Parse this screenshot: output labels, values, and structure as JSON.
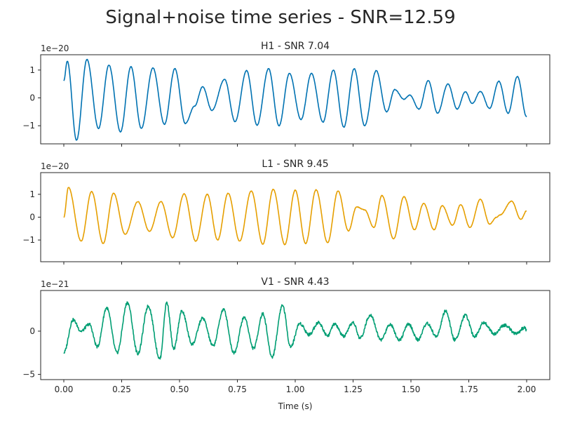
{
  "figure": {
    "suptitle": "Signal+noise time series - SNR=12.59",
    "xlabel": "Time (s)"
  },
  "chart_data": [
    {
      "type": "line",
      "title": "H1 - SNR 7.04",
      "offset_text": "1e−20",
      "color": "#0072B2",
      "xlim": [
        -0.1,
        2.1
      ],
      "ylim": [
        -1.65,
        1.55
      ],
      "xticks": [
        0.0,
        0.25,
        0.5,
        0.75,
        1.0,
        1.25,
        1.5,
        1.75,
        2.0
      ],
      "xtick_labels": [
        "0.00",
        "0.25",
        "0.50",
        "0.75",
        "1.00",
        "1.25",
        "1.50",
        "1.75",
        "2.00"
      ],
      "yticks": [
        1,
        0,
        -1
      ],
      "ytick_labels": [
        "1",
        "0",
        "−1"
      ],
      "peaks": [
        [
          0.0,
          0.62
        ],
        [
          0.015,
          1.32
        ],
        [
          0.055,
          -1.52
        ],
        [
          0.1,
          1.38
        ],
        [
          0.15,
          -1.1
        ],
        [
          0.195,
          1.18
        ],
        [
          0.245,
          -1.22
        ],
        [
          0.29,
          1.12
        ],
        [
          0.335,
          -1.1
        ],
        [
          0.385,
          1.08
        ],
        [
          0.435,
          -0.95
        ],
        [
          0.48,
          1.05
        ],
        [
          0.525,
          -0.92
        ],
        [
          0.565,
          -0.3
        ],
        [
          0.6,
          0.4
        ],
        [
          0.64,
          -0.45
        ],
        [
          0.695,
          0.67
        ],
        [
          0.74,
          -0.85
        ],
        [
          0.79,
          0.98
        ],
        [
          0.835,
          -0.98
        ],
        [
          0.885,
          1.05
        ],
        [
          0.93,
          -1.0
        ],
        [
          0.975,
          0.88
        ],
        [
          1.025,
          -0.78
        ],
        [
          1.07,
          0.88
        ],
        [
          1.12,
          -0.87
        ],
        [
          1.165,
          1.0
        ],
        [
          1.21,
          -1.05
        ],
        [
          1.255,
          1.05
        ],
        [
          1.3,
          -1.0
        ],
        [
          1.35,
          0.98
        ],
        [
          1.395,
          -0.5
        ],
        [
          1.43,
          0.3
        ],
        [
          1.47,
          -0.05
        ],
        [
          1.495,
          0.1
        ],
        [
          1.535,
          -0.4
        ],
        [
          1.575,
          0.62
        ],
        [
          1.615,
          -0.55
        ],
        [
          1.66,
          0.5
        ],
        [
          1.7,
          -0.4
        ],
        [
          1.735,
          0.22
        ],
        [
          1.765,
          -0.2
        ],
        [
          1.8,
          0.23
        ],
        [
          1.84,
          -0.38
        ],
        [
          1.88,
          0.6
        ],
        [
          1.92,
          -0.55
        ],
        [
          1.96,
          0.77
        ],
        [
          2.0,
          -0.68
        ]
      ]
    },
    {
      "type": "line",
      "title": "L1 - SNR 9.45",
      "offset_text": "1e−20",
      "color": "#E69F00",
      "xlim": [
        -0.1,
        2.1
      ],
      "ylim": [
        -1.95,
        1.95
      ],
      "xticks": [
        0.0,
        0.25,
        0.5,
        0.75,
        1.0,
        1.25,
        1.5,
        1.75,
        2.0
      ],
      "xtick_labels": [
        "0.00",
        "0.25",
        "0.50",
        "0.75",
        "1.00",
        "1.25",
        "1.50",
        "1.75",
        "2.00"
      ],
      "yticks": [
        1,
        0,
        -1
      ],
      "ytick_labels": [
        "1",
        "0",
        "−1"
      ],
      "peaks": [
        [
          0.0,
          0.0
        ],
        [
          0.02,
          1.3
        ],
        [
          0.075,
          -1.05
        ],
        [
          0.12,
          1.12
        ],
        [
          0.17,
          -1.15
        ],
        [
          0.215,
          1.05
        ],
        [
          0.265,
          -0.75
        ],
        [
          0.32,
          0.68
        ],
        [
          0.37,
          -0.62
        ],
        [
          0.42,
          0.68
        ],
        [
          0.47,
          -0.9
        ],
        [
          0.52,
          1.02
        ],
        [
          0.57,
          -1.05
        ],
        [
          0.62,
          1.0
        ],
        [
          0.665,
          -1.0
        ],
        [
          0.71,
          1.05
        ],
        [
          0.76,
          -1.05
        ],
        [
          0.81,
          1.15
        ],
        [
          0.86,
          -1.18
        ],
        [
          0.905,
          1.22
        ],
        [
          0.955,
          -1.2
        ],
        [
          1.0,
          1.18
        ],
        [
          1.045,
          -1.15
        ],
        [
          1.09,
          1.2
        ],
        [
          1.14,
          -1.12
        ],
        [
          1.185,
          1.15
        ],
        [
          1.23,
          -0.6
        ],
        [
          1.265,
          0.45
        ],
        [
          1.3,
          0.32
        ],
        [
          1.34,
          -0.45
        ],
        [
          1.375,
          0.95
        ],
        [
          1.425,
          -0.95
        ],
        [
          1.47,
          0.9
        ],
        [
          1.515,
          -0.55
        ],
        [
          1.555,
          0.6
        ],
        [
          1.6,
          -0.55
        ],
        [
          1.635,
          0.5
        ],
        [
          1.68,
          -0.35
        ],
        [
          1.715,
          0.55
        ],
        [
          1.755,
          -0.45
        ],
        [
          1.8,
          0.78
        ],
        [
          1.84,
          -0.3
        ],
        [
          1.87,
          0.0
        ],
        [
          1.885,
          0.1
        ],
        [
          1.935,
          0.7
        ],
        [
          1.975,
          -0.1
        ],
        [
          2.0,
          0.28
        ]
      ]
    },
    {
      "type": "line",
      "title": "V1 - SNR 4.43",
      "offset_text": "1e−21",
      "color": "#009E73",
      "xlim": [
        -0.1,
        2.1
      ],
      "ylim": [
        -5.6,
        4.7
      ],
      "xticks": [
        0.0,
        0.25,
        0.5,
        0.75,
        1.0,
        1.25,
        1.5,
        1.75,
        2.0
      ],
      "xtick_labels": [
        "0.00",
        "0.25",
        "0.50",
        "0.75",
        "1.00",
        "1.25",
        "1.50",
        "1.75",
        "2.00"
      ],
      "yticks": [
        0,
        -5
      ],
      "ytick_labels": [
        "0",
        "−5"
      ],
      "peaks": [
        [
          0.0,
          -2.5
        ],
        [
          0.04,
          1.3
        ],
        [
          0.075,
          0.0
        ],
        [
          0.11,
          0.8
        ],
        [
          0.145,
          -1.8
        ],
        [
          0.185,
          2.7
        ],
        [
          0.23,
          -2.5
        ],
        [
          0.275,
          3.3
        ],
        [
          0.32,
          -2.6
        ],
        [
          0.365,
          2.9
        ],
        [
          0.415,
          -3.2
        ],
        [
          0.445,
          3.3
        ],
        [
          0.475,
          -2.1
        ],
        [
          0.51,
          2.3
        ],
        [
          0.555,
          -1.5
        ],
        [
          0.6,
          1.5
        ],
        [
          0.645,
          -1.7
        ],
        [
          0.69,
          2.5
        ],
        [
          0.735,
          -2.5
        ],
        [
          0.78,
          1.6
        ],
        [
          0.82,
          -2.0
        ],
        [
          0.86,
          2.0
        ],
        [
          0.9,
          -3.0
        ],
        [
          0.945,
          3.0
        ],
        [
          0.98,
          -1.8
        ],
        [
          1.02,
          0.9
        ],
        [
          1.06,
          -0.4
        ],
        [
          1.1,
          1.0
        ],
        [
          1.14,
          -0.5
        ],
        [
          1.17,
          0.8
        ],
        [
          1.21,
          -0.6
        ],
        [
          1.25,
          1.0
        ],
        [
          1.28,
          -0.8
        ],
        [
          1.325,
          1.9
        ],
        [
          1.37,
          -1.0
        ],
        [
          1.41,
          0.8
        ],
        [
          1.45,
          -1.0
        ],
        [
          1.49,
          0.8
        ],
        [
          1.53,
          -1.0
        ],
        [
          1.57,
          0.9
        ],
        [
          1.61,
          -0.6
        ],
        [
          1.65,
          2.3
        ],
        [
          1.69,
          -1.0
        ],
        [
          1.735,
          1.8
        ],
        [
          1.775,
          -0.6
        ],
        [
          1.815,
          1.0
        ],
        [
          1.86,
          -0.3
        ],
        [
          1.905,
          0.7
        ],
        [
          1.955,
          -0.3
        ],
        [
          1.99,
          0.4
        ],
        [
          2.0,
          0.1
        ]
      ]
    }
  ]
}
